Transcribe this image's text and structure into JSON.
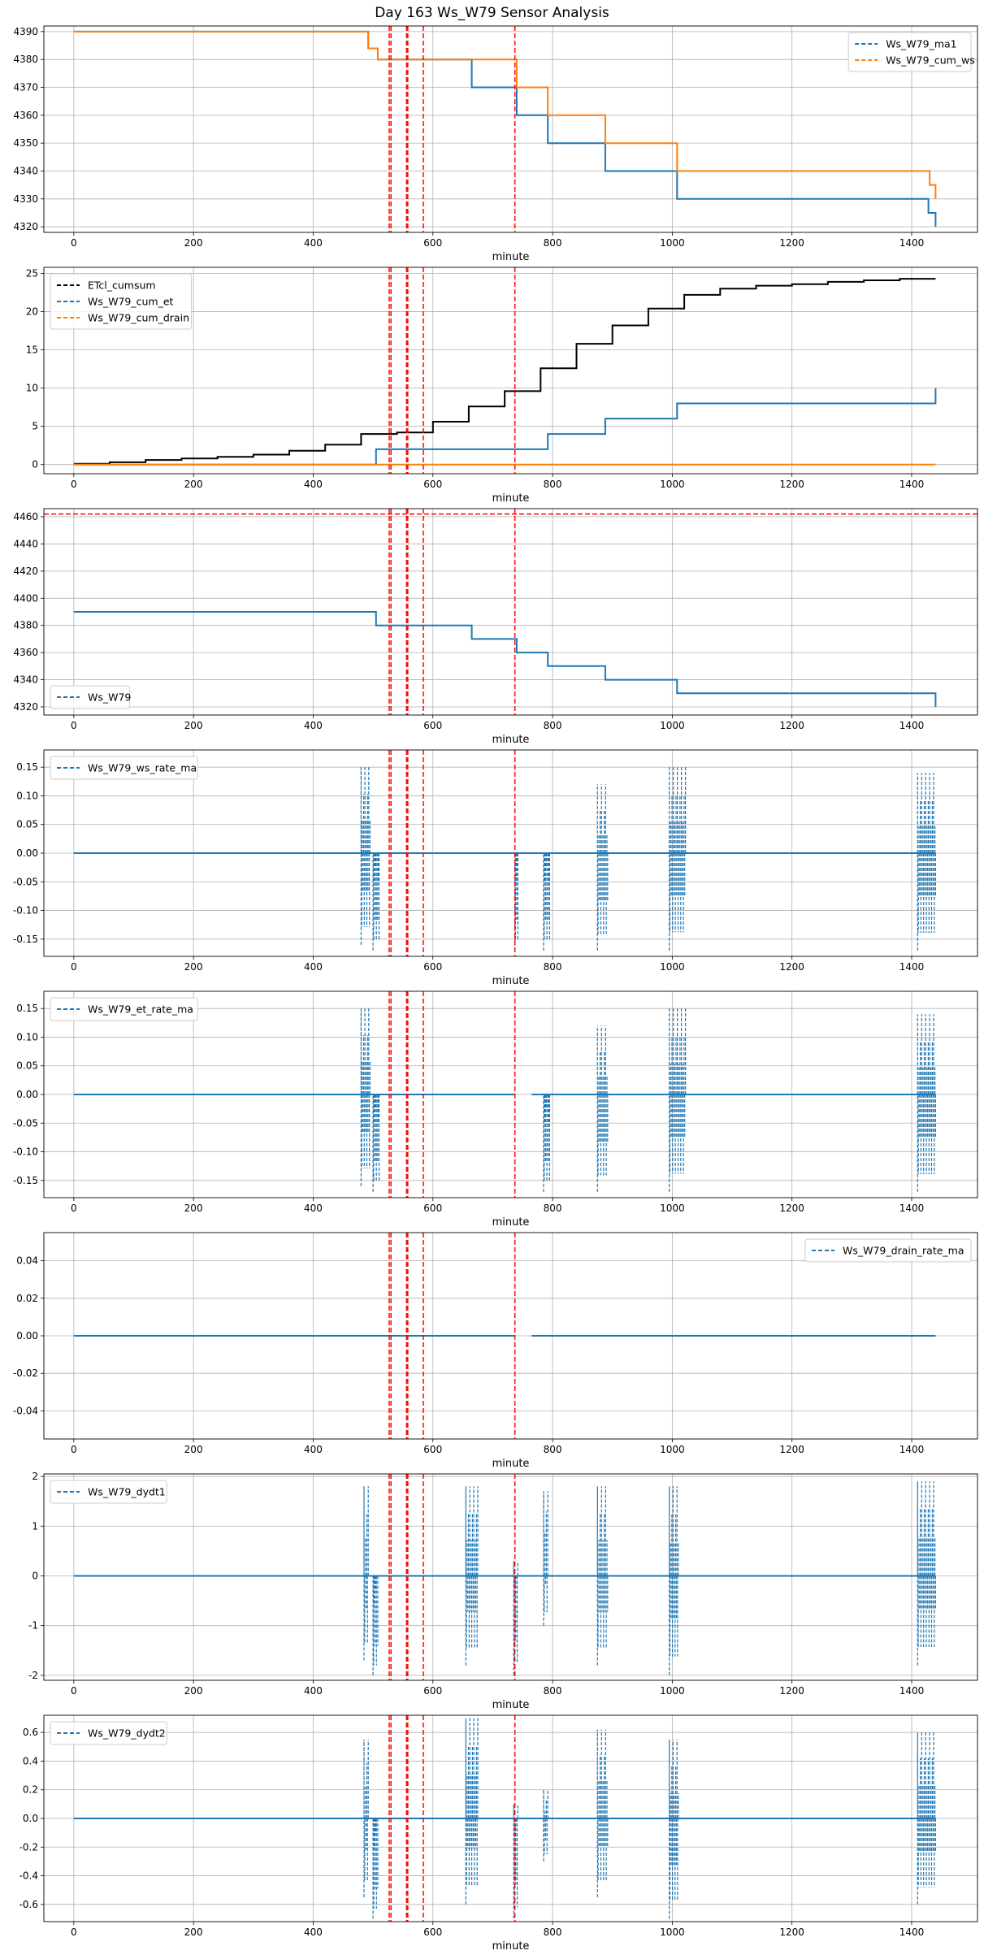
{
  "figure_title": "Day 163 Ws_W79 Sensor Analysis",
  "colors": {
    "blue": "#1f77b4",
    "orange": "#ff7f0e",
    "black": "#000000",
    "red": "#ff0000",
    "grid": "#b0b0b0"
  },
  "event_lines_minute": [
    527,
    530,
    556,
    558,
    584,
    737
  ],
  "chart_data": [
    {
      "type": "line",
      "title": "",
      "xlabel": "minute",
      "xlim": [
        -50,
        1510
      ],
      "ylim": [
        4318,
        4392
      ],
      "xticks": [
        0,
        200,
        400,
        600,
        800,
        1000,
        1200,
        1400
      ],
      "yticks": [
        4320,
        4330,
        4340,
        4350,
        4360,
        4370,
        4380,
        4390
      ],
      "legend": "top-right",
      "series": [
        {
          "name": "Ws_W79_ma1",
          "color": "#1f77b4",
          "style": "step",
          "x": [
            0,
            490,
            492,
            505,
            508,
            650,
            665,
            735,
            740,
            785,
            792,
            880,
            888,
            1000,
            1008,
            1425,
            1428,
            1440
          ],
          "y": [
            4390,
            4390,
            4384,
            4384,
            4380,
            4380,
            4370,
            4370,
            4360,
            4360,
            4350,
            4350,
            4340,
            4340,
            4330,
            4330,
            4325,
            4320
          ]
        },
        {
          "name": "Ws_W79_cum_ws",
          "color": "#ff7f0e",
          "style": "step",
          "x": [
            0,
            490,
            492,
            505,
            508,
            735,
            740,
            785,
            792,
            880,
            888,
            1000,
            1008,
            1425,
            1430,
            1440
          ],
          "y": [
            4390,
            4390,
            4384,
            4384,
            4380,
            4380,
            4370,
            4370,
            4360,
            4360,
            4350,
            4350,
            4340,
            4340,
            4335,
            4330
          ]
        }
      ]
    },
    {
      "type": "line",
      "title": "",
      "xlabel": "minute",
      "xlim": [
        -50,
        1510
      ],
      "ylim": [
        -1.2,
        25.8
      ],
      "xticks": [
        0,
        200,
        400,
        600,
        800,
        1000,
        1200,
        1400
      ],
      "yticks": [
        0,
        5,
        10,
        15,
        20,
        25
      ],
      "legend": "top-left",
      "series": [
        {
          "name": "ETcl_cumsum",
          "color": "#000000",
          "style": "step",
          "x": [
            0,
            60,
            120,
            180,
            240,
            300,
            360,
            420,
            480,
            540,
            600,
            660,
            720,
            780,
            840,
            900,
            960,
            1020,
            1080,
            1140,
            1200,
            1260,
            1320,
            1380,
            1440
          ],
          "y": [
            0.1,
            0.3,
            0.6,
            0.8,
            1.0,
            1.3,
            1.8,
            2.6,
            4.0,
            4.2,
            5.6,
            7.6,
            9.6,
            12.6,
            15.8,
            18.2,
            20.4,
            22.2,
            23.0,
            23.4,
            23.6,
            23.9,
            24.1,
            24.3,
            24.3
          ]
        },
        {
          "name": "Ws_W79_cum_et",
          "color": "#1f77b4",
          "style": "step",
          "x": [
            0,
            490,
            505,
            737,
            765,
            792,
            880,
            888,
            1000,
            1008,
            1425,
            1440
          ],
          "y": [
            0,
            0,
            2.0,
            2.0,
            2.0,
            4.0,
            4.0,
            6.0,
            6.0,
            8.0,
            8.0,
            10.0
          ]
        },
        {
          "name": "Ws_W79_cum_drain",
          "color": "#ff7f0e",
          "style": "step",
          "x": [
            0,
            1440
          ],
          "y": [
            0,
            0
          ]
        }
      ]
    },
    {
      "type": "line",
      "title": "",
      "xlabel": "minute",
      "xlim": [
        -50,
        1510
      ],
      "ylim": [
        4314,
        4466
      ],
      "xticks": [
        0,
        200,
        400,
        600,
        800,
        1000,
        1200,
        1400
      ],
      "yticks": [
        4320,
        4340,
        4360,
        4380,
        4400,
        4420,
        4440,
        4460
      ],
      "legend": "bottom-left",
      "hline": 4462,
      "series": [
        {
          "name": "Ws_W79",
          "color": "#1f77b4",
          "style": "step",
          "x": [
            0,
            490,
            505,
            508,
            650,
            665,
            735,
            740,
            785,
            792,
            880,
            888,
            1000,
            1008,
            1425,
            1440
          ],
          "y": [
            4390,
            4390,
            4380,
            4380,
            4380,
            4370,
            4370,
            4360,
            4360,
            4350,
            4350,
            4340,
            4340,
            4330,
            4330,
            4320
          ]
        }
      ]
    },
    {
      "type": "line",
      "title": "",
      "xlabel": "minute",
      "xlim": [
        -50,
        1510
      ],
      "ylim": [
        -0.18,
        0.18
      ],
      "xticks": [
        0,
        200,
        400,
        600,
        800,
        1000,
        1200,
        1400
      ],
      "yticks": [
        -0.15,
        -0.1,
        -0.05,
        0.0,
        0.05,
        0.1,
        0.15
      ],
      "ytick_labels": [
        "-0.15",
        "-0.10",
        "-0.05",
        "0.00",
        "0.05",
        "0.10",
        "0.15"
      ],
      "legend": "top-left",
      "series": [
        {
          "name": "Ws_W79_ws_rate_ma",
          "color": "#1f77b4",
          "style": "line",
          "x": [
            0,
            1440
          ],
          "y": [
            0,
            0
          ],
          "spikes": [
            [
              480,
              495,
              -0.16,
              0.15
            ],
            [
              500,
              510,
              -0.17,
              0.0
            ],
            [
              737,
              742,
              -0.17,
              0.0
            ],
            [
              785,
              795,
              -0.17,
              0.0
            ],
            [
              875,
              892,
              -0.17,
              0.12
            ],
            [
              995,
              1022,
              -0.17,
              0.15
            ],
            [
              1410,
              1440,
              -0.17,
              0.14
            ]
          ]
        }
      ]
    },
    {
      "type": "line",
      "title": "",
      "xlabel": "minute",
      "xlim": [
        -50,
        1510
      ],
      "ylim": [
        -0.18,
        0.18
      ],
      "xticks": [
        0,
        200,
        400,
        600,
        800,
        1000,
        1200,
        1400
      ],
      "yticks": [
        -0.15,
        -0.1,
        -0.05,
        0.0,
        0.05,
        0.1,
        0.15
      ],
      "ytick_labels": [
        "-0.15",
        "-0.10",
        "-0.05",
        "0.00",
        "0.05",
        "0.10",
        "0.15"
      ],
      "legend": "top-left",
      "series": [
        {
          "name": "Ws_W79_et_rate_ma",
          "color": "#1f77b4",
          "style": "line",
          "x": [
            0,
            737,
            null,
            765,
            1440
          ],
          "y": [
            0,
            0,
            null,
            0,
            0
          ],
          "spikes": [
            [
              480,
              495,
              -0.16,
              0.15
            ],
            [
              500,
              510,
              -0.17,
              0.0
            ],
            [
              785,
              795,
              -0.17,
              0.0
            ],
            [
              875,
              892,
              -0.17,
              0.12
            ],
            [
              995,
              1022,
              -0.17,
              0.15
            ],
            [
              1410,
              1440,
              -0.17,
              0.14
            ]
          ]
        }
      ]
    },
    {
      "type": "line",
      "title": "",
      "xlabel": "minute",
      "xlim": [
        -50,
        1510
      ],
      "ylim": [
        -0.055,
        0.055
      ],
      "xticks": [
        0,
        200,
        400,
        600,
        800,
        1000,
        1200,
        1400
      ],
      "yticks": [
        -0.04,
        -0.02,
        0.0,
        0.02,
        0.04
      ],
      "ytick_labels": [
        "-0.04",
        "-0.02",
        "0.00",
        "0.02",
        "0.04"
      ],
      "legend": "top-right",
      "series": [
        {
          "name": "Ws_W79_drain_rate_ma",
          "color": "#1f77b4",
          "style": "line",
          "x": [
            0,
            737,
            null,
            765,
            1440
          ],
          "y": [
            0,
            0,
            null,
            0,
            0
          ],
          "spikes": []
        }
      ]
    },
    {
      "type": "line",
      "title": "",
      "xlabel": "minute",
      "xlim": [
        -50,
        1510
      ],
      "ylim": [
        -2.1,
        2.05
      ],
      "xticks": [
        0,
        200,
        400,
        600,
        800,
        1000,
        1200,
        1400
      ],
      "yticks": [
        -2,
        -1,
        0,
        1,
        2
      ],
      "legend": "top-left",
      "series": [
        {
          "name": "Ws_W79_dydt1",
          "color": "#1f77b4",
          "style": "line",
          "x": [
            0,
            1440
          ],
          "y": [
            0,
            0
          ],
          "spikes": [
            [
              485,
              492,
              -1.7,
              1.8
            ],
            [
              500,
              508,
              -2.0,
              0.0
            ],
            [
              655,
              675,
              -1.8,
              1.8
            ],
            [
              735,
              742,
              -2.0,
              0.3
            ],
            [
              785,
              792,
              -1.0,
              1.7
            ],
            [
              875,
              892,
              -1.8,
              1.8
            ],
            [
              995,
              1010,
              -2.0,
              1.8
            ],
            [
              1410,
              1440,
              -1.8,
              1.9
            ]
          ]
        }
      ]
    },
    {
      "type": "line",
      "title": "",
      "xlabel": "minute",
      "xlim": [
        -50,
        1510
      ],
      "ylim": [
        -0.72,
        0.72
      ],
      "xticks": [
        0,
        200,
        400,
        600,
        800,
        1000,
        1200,
        1400
      ],
      "yticks": [
        -0.6,
        -0.4,
        -0.2,
        0.0,
        0.2,
        0.4,
        0.6
      ],
      "ytick_labels": [
        "-0.6",
        "-0.4",
        "-0.2",
        "0.0",
        "0.2",
        "0.4",
        "0.6"
      ],
      "legend": "top-left",
      "series": [
        {
          "name": "Ws_W79_dydt2",
          "color": "#1f77b4",
          "style": "line",
          "x": [
            0,
            1440
          ],
          "y": [
            0,
            0
          ],
          "spikes": [
            [
              485,
              492,
              -0.55,
              0.55
            ],
            [
              500,
              508,
              -0.7,
              0.0
            ],
            [
              655,
              675,
              -0.6,
              0.7
            ],
            [
              735,
              742,
              -0.7,
              0.1
            ],
            [
              785,
              792,
              -0.3,
              0.2
            ],
            [
              875,
              892,
              -0.55,
              0.62
            ],
            [
              995,
              1010,
              -0.7,
              0.55
            ],
            [
              1410,
              1440,
              -0.6,
              0.6
            ]
          ]
        }
      ]
    }
  ]
}
